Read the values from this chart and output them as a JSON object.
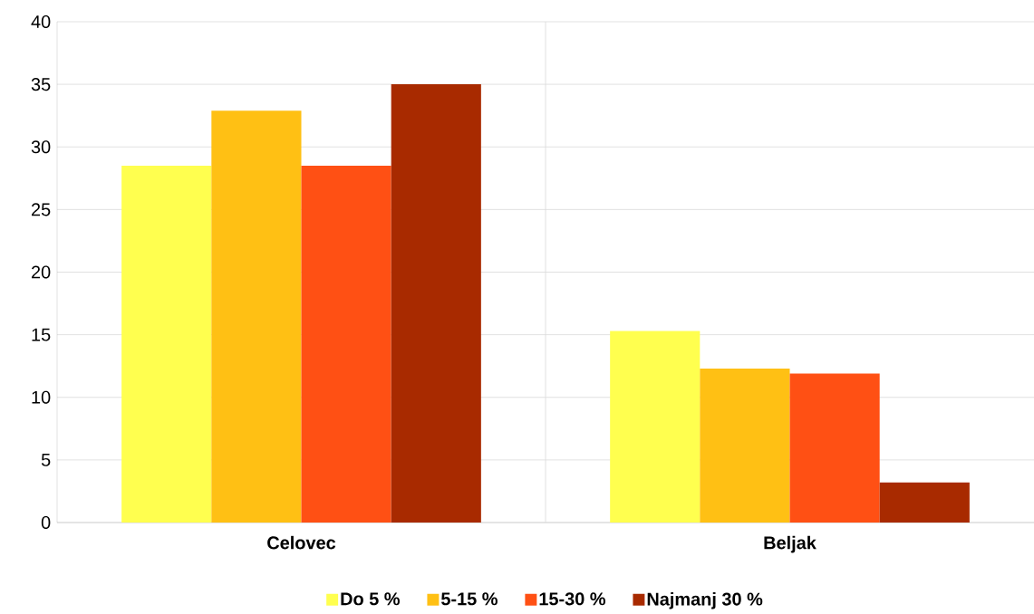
{
  "chart_data": {
    "type": "bar",
    "categories": [
      "Celovec",
      "Beljak"
    ],
    "series": [
      {
        "name": "Do 5 %",
        "color": "#ffff4f",
        "values": [
          28.5,
          15.3
        ]
      },
      {
        "name": "5-15 %",
        "color": "#ffc014",
        "values": [
          32.9,
          12.3
        ]
      },
      {
        "name": "15-30 %",
        "color": "#ff5014",
        "values": [
          28.5,
          11.9
        ]
      },
      {
        "name": "Najmanj 30 %",
        "color": "#a82a00",
        "values": [
          35.0,
          3.2
        ]
      }
    ],
    "ylim": [
      0,
      40
    ],
    "yticks": [
      0,
      5,
      10,
      15,
      20,
      25,
      30,
      35,
      40
    ],
    "grid": true,
    "legend": "bottom"
  }
}
